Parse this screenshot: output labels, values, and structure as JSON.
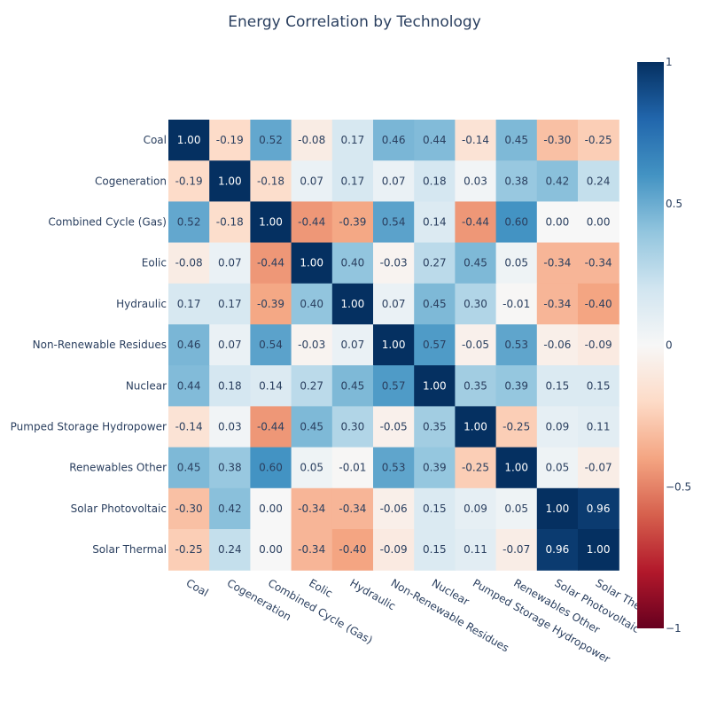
{
  "chart_data": {
    "type": "heatmap",
    "title": "Energy Correlation by Technology",
    "xlabel": "",
    "ylabel": "",
    "categories": [
      "Coal",
      "Cogeneration",
      "Combined Cycle (Gas)",
      "Eolic",
      "Hydraulic",
      "Non-Renewable Residues",
      "Nuclear",
      "Pumped Storage Hydropower",
      "Renewables Other",
      "Solar Photovoltaic",
      "Solar Thermal"
    ],
    "x_tick_labels": [
      "Coal",
      "Cogeneration",
      "Combined Cycle (Gas)",
      "Eolic",
      "Hydraulic",
      "Non-Renewable Residues",
      "Nuclear",
      "Pumped Storage Hydropower",
      "Renewables Other",
      "Solar Photovoltaic",
      "Solar Thermal"
    ],
    "values": [
      [
        1.0,
        -0.19,
        0.52,
        -0.08,
        0.17,
        0.46,
        0.44,
        -0.14,
        0.45,
        -0.3,
        -0.25
      ],
      [
        -0.19,
        1.0,
        -0.18,
        0.07,
        0.17,
        0.07,
        0.18,
        0.03,
        0.38,
        0.42,
        0.24
      ],
      [
        0.52,
        -0.18,
        1.0,
        -0.44,
        -0.39,
        0.54,
        0.14,
        -0.44,
        0.6,
        0.0,
        0.0
      ],
      [
        -0.08,
        0.07,
        -0.44,
        1.0,
        0.4,
        -0.03,
        0.27,
        0.45,
        0.05,
        -0.34,
        -0.34
      ],
      [
        0.17,
        0.17,
        -0.39,
        0.4,
        1.0,
        0.07,
        0.45,
        0.3,
        -0.01,
        -0.34,
        -0.4
      ],
      [
        0.46,
        0.07,
        0.54,
        -0.03,
        0.07,
        1.0,
        0.57,
        -0.05,
        0.53,
        -0.06,
        -0.09
      ],
      [
        0.44,
        0.18,
        0.14,
        0.27,
        0.45,
        0.57,
        1.0,
        0.35,
        0.39,
        0.15,
        0.15
      ],
      [
        -0.14,
        0.03,
        -0.44,
        0.45,
        0.3,
        -0.05,
        0.35,
        1.0,
        -0.25,
        0.09,
        0.11
      ],
      [
        0.45,
        0.38,
        0.6,
        0.05,
        -0.01,
        0.53,
        0.39,
        -0.25,
        1.0,
        0.05,
        -0.07
      ],
      [
        -0.3,
        0.42,
        0.0,
        -0.34,
        -0.34,
        -0.06,
        0.15,
        0.09,
        0.05,
        1.0,
        0.96
      ],
      [
        -0.25,
        0.24,
        0.0,
        -0.34,
        -0.4,
        -0.09,
        0.15,
        0.11,
        -0.07,
        0.96,
        1.0
      ]
    ],
    "zrange": [
      -1,
      1
    ],
    "colorscale": "RdBu",
    "colorbar": {
      "ticks": [
        1,
        0.5,
        0,
        -0.5,
        -1
      ],
      "tick_labels": [
        "1",
        "0.5",
        "0",
        "−0.5",
        "−1"
      ]
    },
    "text_format": "2-decimal",
    "grid": false,
    "legend": "colorbar-right"
  }
}
